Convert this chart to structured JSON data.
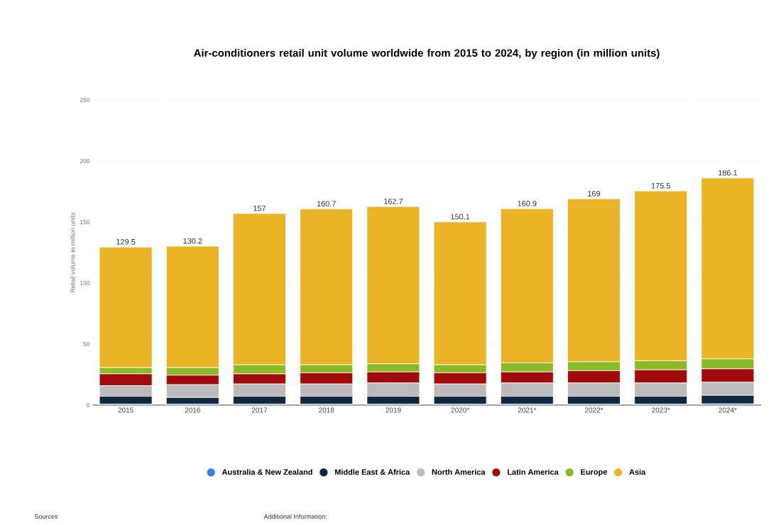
{
  "chart_data": {
    "type": "bar",
    "stacked": true,
    "title": "Air-conditioners retail unit volume worldwide from 2015 to 2024, by region (in million units)",
    "ylabel": "Retail volume in million units",
    "categories": [
      "2015",
      "2016",
      "2017",
      "2018",
      "2019",
      "2020*",
      "2021*",
      "2022*",
      "2023*",
      "2024*"
    ],
    "series": [
      {
        "name": "Australia & New Zealand",
        "color": "#3a80de",
        "values": [
          0.8,
          0.8,
          0.8,
          0.8,
          0.8,
          0.8,
          0.8,
          0.8,
          0.8,
          1.0
        ]
      },
      {
        "name": "Middle East & Africa",
        "color": "#13273c",
        "values": [
          6.4,
          5.4,
          6.4,
          6.4,
          6.4,
          6.4,
          6.4,
          6.4,
          6.4,
          7.0
        ]
      },
      {
        "name": "North America",
        "color": "#bbbbbb",
        "values": [
          8.7,
          10.5,
          10.1,
          10.1,
          10.9,
          10.1,
          10.9,
          10.9,
          10.9,
          10.8
        ]
      },
      {
        "name": "Latin America",
        "color": "#a20b0b",
        "values": [
          9.7,
          7.8,
          8.3,
          9.1,
          9.1,
          9.1,
          9.1,
          10.1,
          10.8,
          10.9
        ]
      },
      {
        "name": "Europe",
        "color": "#8aba25",
        "values": [
          5.1,
          6.2,
          7.4,
          6.6,
          6.6,
          6.6,
          7.4,
          7.3,
          7.4,
          8.2
        ]
      },
      {
        "name": "Asia",
        "color": "#ebb427",
        "values": [
          98.8,
          99.5,
          124.0,
          127.7,
          128.9,
          117.1,
          126.3,
          133.5,
          139.2,
          148.2
        ]
      }
    ],
    "totals": [
      "129.5",
      "130.2",
      "157",
      "160.7",
      "162.7",
      "150.1",
      "160.9",
      "169",
      "175.5",
      "186.1"
    ],
    "ylim": [
      0,
      250
    ],
    "yticks": [
      0,
      50,
      100,
      150,
      200,
      250
    ],
    "grid": "y",
    "legend": "bottom",
    "annotations": [
      "Sources",
      "Additional Information:"
    ]
  }
}
